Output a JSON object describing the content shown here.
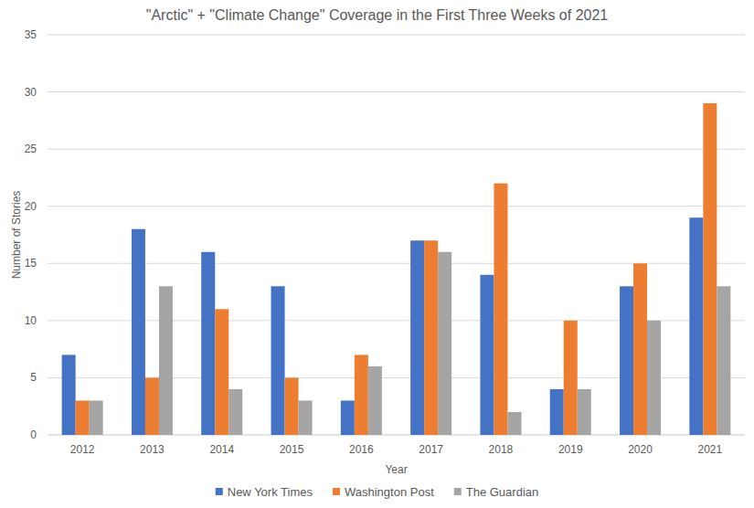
{
  "chart_data": {
    "type": "bar",
    "title": "\"Arctic\" + \"Climate Change\" Coverage in the First Three Weeks of 2021",
    "x_label": "Year",
    "y_label": "Number of Stories",
    "categories": [
      "2012",
      "2013",
      "2014",
      "2015",
      "2016",
      "2017",
      "2018",
      "2019",
      "2020",
      "2021"
    ],
    "series": [
      {
        "name": "New York Times",
        "color": "#4472c4",
        "values": [
          7,
          18,
          16,
          13,
          3,
          17,
          14,
          4,
          13,
          19
        ]
      },
      {
        "name": "Washington Post",
        "color": "#ed7d31",
        "values": [
          3,
          5,
          11,
          5,
          7,
          17,
          22,
          10,
          15,
          29
        ]
      },
      {
        "name": "The Guardian",
        "color": "#a5a5a5",
        "values": [
          3,
          13,
          4,
          3,
          6,
          16,
          2,
          4,
          10,
          13
        ]
      }
    ],
    "ylim": [
      0,
      35
    ],
    "yticks": [
      0,
      5,
      10,
      15,
      20,
      25,
      30,
      35
    ],
    "grid": true,
    "legend": "bottom"
  }
}
